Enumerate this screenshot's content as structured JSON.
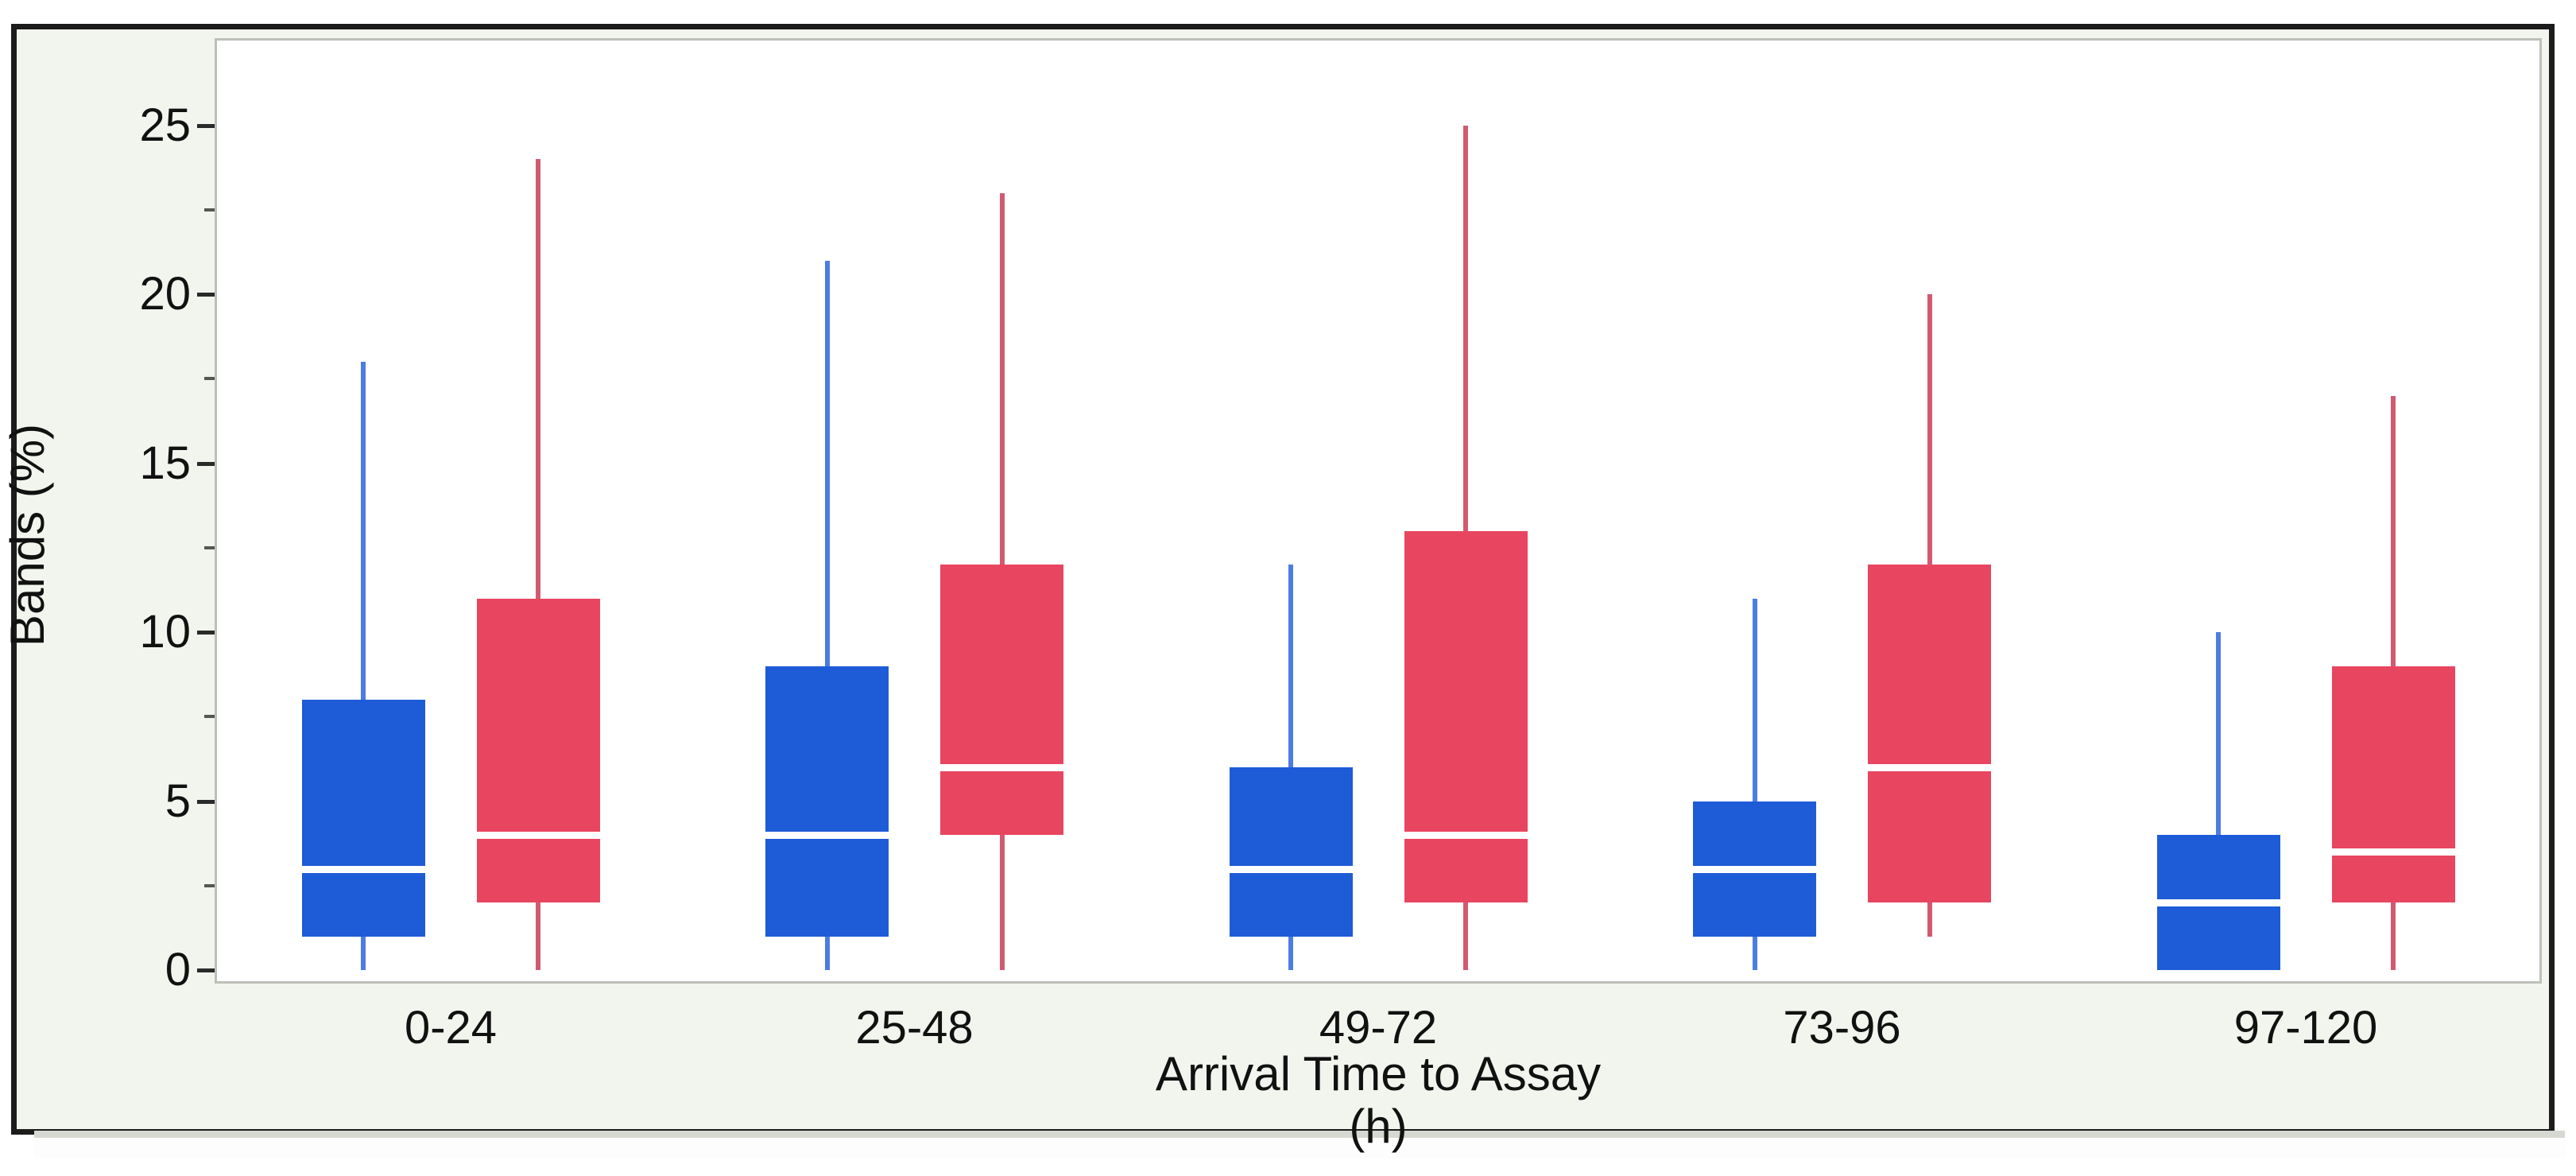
{
  "figure": {
    "background_color": "#f2f5ee",
    "plot_background_color": "#ffffff",
    "outer_border_color": "#1c1c1c",
    "axis_frame_color": "#bcc0b8",
    "tick_color": "#2a2a2a",
    "text_color": "#111111"
  },
  "chart_data": {
    "type": "boxplot",
    "title": "",
    "xlabel": "Arrival Time to Assay (h)",
    "ylabel": "Bands (%)",
    "ylim": [
      0,
      25
    ],
    "yticks": [
      0,
      5,
      10,
      15,
      20,
      25
    ],
    "ytick_labels": [
      "0",
      "5",
      "10",
      "15",
      "20",
      "25"
    ],
    "minor_yticks": [
      2.5,
      7.5,
      12.5,
      17.5,
      22.5
    ],
    "grid": false,
    "legend": "none",
    "categories": [
      "0-24",
      "25-48",
      "49-72",
      "73-96",
      "97-120"
    ],
    "series": [
      {
        "name": "blue",
        "box_color": "#1e5bd7",
        "whisker_color": "#4c7de0",
        "median_color": "#ffffff",
        "boxes": [
          {
            "category": "0-24",
            "whisker_low": 0,
            "q1": 1,
            "median": 3,
            "q3": 8,
            "whisker_high": 18
          },
          {
            "category": "25-48",
            "whisker_low": 0,
            "q1": 1,
            "median": 4,
            "q3": 9,
            "whisker_high": 21
          },
          {
            "category": "49-72",
            "whisker_low": 0,
            "q1": 1,
            "median": 3,
            "q3": 6,
            "whisker_high": 12
          },
          {
            "category": "73-96",
            "whisker_low": 0,
            "q1": 1,
            "median": 3,
            "q3": 5,
            "whisker_high": 11
          },
          {
            "category": "97-120",
            "whisker_low": 0,
            "q1": 0,
            "median": 2,
            "q3": 4,
            "whisker_high": 10
          }
        ]
      },
      {
        "name": "red",
        "box_color": "#e84560",
        "whisker_color": "#d15a73",
        "median_color": "#ffffff",
        "boxes": [
          {
            "category": "0-24",
            "whisker_low": 0,
            "q1": 2,
            "median": 4,
            "q3": 11,
            "whisker_high": 24
          },
          {
            "category": "25-48",
            "whisker_low": 0,
            "q1": 4,
            "median": 6,
            "q3": 12,
            "whisker_high": 23
          },
          {
            "category": "49-72",
            "whisker_low": 0,
            "q1": 2,
            "median": 4,
            "q3": 13,
            "whisker_high": 25
          },
          {
            "category": "73-96",
            "whisker_low": 1,
            "q1": 2,
            "median": 6,
            "q3": 12,
            "whisker_high": 20
          },
          {
            "category": "97-120",
            "whisker_low": 0,
            "q1": 2,
            "median": 3.5,
            "q3": 9,
            "whisker_high": 17
          }
        ]
      }
    ]
  }
}
